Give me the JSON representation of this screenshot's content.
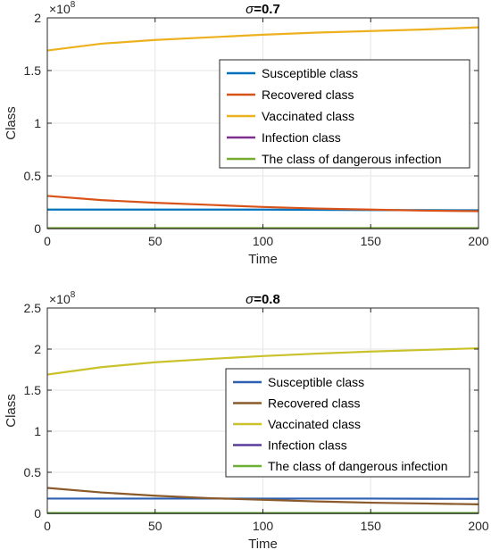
{
  "chart_data": [
    {
      "type": "line",
      "title_symbol": "σ",
      "title_value": "=0.7",
      "xlabel": "Time",
      "ylabel": "Class",
      "multiplier_base": "×10",
      "multiplier_exp": "8",
      "xlim": [
        0,
        200
      ],
      "ylim": [
        0,
        2
      ],
      "xticks": [
        0,
        50,
        100,
        150,
        200
      ],
      "xtick_labels": [
        "0",
        "50",
        "100",
        "150",
        "200"
      ],
      "yticks": [
        0,
        0.5,
        1,
        1.5,
        2
      ],
      "ytick_labels": [
        "0",
        "0.5",
        "1",
        "1.5",
        "2"
      ],
      "grid": true,
      "legend_position": "right",
      "x": [
        0,
        25,
        50,
        75,
        100,
        125,
        150,
        175,
        200
      ],
      "series": [
        {
          "name": "Susceptible class",
          "color": "#0072BD",
          "values": [
            0.18,
            0.18,
            0.18,
            0.18,
            0.18,
            0.178,
            0.176,
            0.175,
            0.174
          ]
        },
        {
          "name": "Recovered class",
          "color": "#D95319",
          "values": [
            0.31,
            0.27,
            0.245,
            0.225,
            0.205,
            0.19,
            0.18,
            0.17,
            0.165
          ]
        },
        {
          "name": "Vaccinated class",
          "color": "#EDB120",
          "values": [
            1.69,
            1.755,
            1.79,
            1.815,
            1.84,
            1.86,
            1.875,
            1.89,
            1.91
          ]
        },
        {
          "name": "Infection class",
          "color": "#7E2F8E",
          "values": [
            0.003,
            0.003,
            0.003,
            0.003,
            0.003,
            0.003,
            0.003,
            0.003,
            0.003
          ]
        },
        {
          "name": "The class of dangerous infection",
          "color": "#77AC30",
          "values": [
            0.004,
            0.004,
            0.004,
            0.004,
            0.004,
            0.004,
            0.004,
            0.004,
            0.004
          ]
        }
      ]
    },
    {
      "type": "line",
      "title_symbol": "σ",
      "title_value": "=0.8",
      "xlabel": "Time",
      "ylabel": "Class",
      "multiplier_base": "×10",
      "multiplier_exp": "8",
      "xlim": [
        0,
        200
      ],
      "ylim": [
        0,
        2.5
      ],
      "xticks": [
        0,
        50,
        100,
        150,
        200
      ],
      "xtick_labels": [
        "0",
        "50",
        "100",
        "150",
        "200"
      ],
      "yticks": [
        0,
        0.5,
        1,
        1.5,
        2,
        2.5
      ],
      "ytick_labels": [
        "0",
        "0.5",
        "1",
        "1.5",
        "2",
        "2.5"
      ],
      "grid": true,
      "legend_position": "right",
      "x": [
        0,
        25,
        50,
        75,
        100,
        125,
        150,
        175,
        200
      ],
      "series": [
        {
          "name": "Susceptible class",
          "color": "#2E5FB0",
          "values": [
            0.18,
            0.18,
            0.18,
            0.18,
            0.18,
            0.18,
            0.18,
            0.178,
            0.177
          ]
        },
        {
          "name": "Recovered class",
          "color": "#8B5A2B",
          "values": [
            0.31,
            0.255,
            0.215,
            0.185,
            0.165,
            0.145,
            0.13,
            0.12,
            0.11
          ]
        },
        {
          "name": "Vaccinated class",
          "color": "#C9C22A",
          "values": [
            1.69,
            1.78,
            1.84,
            1.88,
            1.915,
            1.945,
            1.97,
            1.99,
            2.01
          ]
        },
        {
          "name": "Infection class",
          "color": "#5B3A9E",
          "values": [
            0.003,
            0.003,
            0.003,
            0.003,
            0.003,
            0.003,
            0.003,
            0.003,
            0.003
          ]
        },
        {
          "name": "The class of dangerous infection",
          "color": "#6BAF35",
          "values": [
            0.004,
            0.004,
            0.004,
            0.004,
            0.004,
            0.004,
            0.004,
            0.004,
            0.004
          ]
        }
      ]
    }
  ]
}
